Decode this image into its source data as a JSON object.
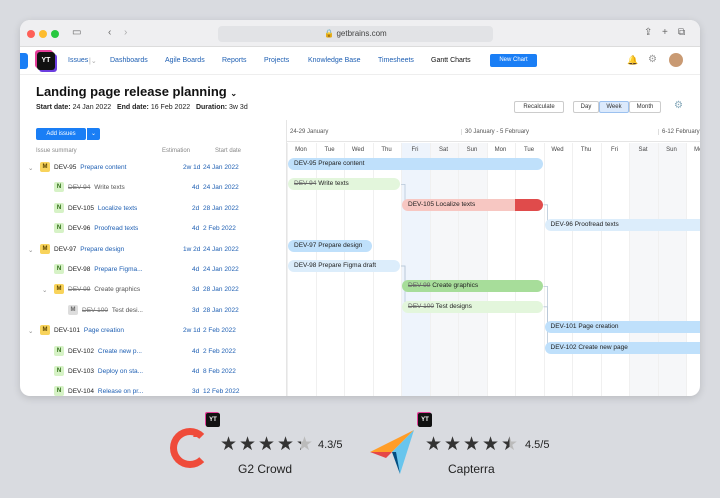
{
  "browser": {
    "url": "getbrains.com"
  },
  "nav": {
    "items": [
      "Issues",
      "Dashboards",
      "Agile Boards",
      "Reports",
      "Projects",
      "Knowledge Base",
      "Timesheets",
      "Gantt Charts"
    ],
    "new_chart": "New Chart",
    "logo_text": "YT"
  },
  "page": {
    "title": "Landing page release planning",
    "start_label": "Start date:",
    "start": "24 Jan 2022",
    "end_label": "End date:",
    "end": "16 Feb 2022",
    "duration_label": "Duration:",
    "duration": "3w 3d",
    "recalculate": "Recalculate",
    "views": [
      "Day",
      "Week",
      "Month"
    ],
    "selected_view": "Week",
    "add_issues": "Add issues"
  },
  "columns": {
    "summary": "Issue summary",
    "estimation": "Estimation",
    "start": "Start date"
  },
  "issues": [
    {
      "badge": "M",
      "id": "DEV-95",
      "title": "Prepare content",
      "est": "2w 1d",
      "start": "24 Jan 2022",
      "done": false,
      "level": 0
    },
    {
      "badge": "N",
      "id": "DEV-94",
      "title": "Write texts",
      "est": "4d",
      "start": "24 Jan 2022",
      "done": true,
      "level": 1
    },
    {
      "badge": "N",
      "id": "DEV-105",
      "title": "Localize texts",
      "est": "2d",
      "start": "28 Jan 2022",
      "done": false,
      "level": 1
    },
    {
      "badge": "N",
      "id": "DEV-96",
      "title": "Proofread texts",
      "est": "4d",
      "start": "2 Feb 2022",
      "done": false,
      "level": 1
    },
    {
      "badge": "M",
      "id": "DEV-97",
      "title": "Prepare design",
      "est": "1w 2d",
      "start": "24 Jan 2022",
      "done": false,
      "level": 0
    },
    {
      "badge": "N",
      "id": "DEV-98",
      "title": "Prepare Figma...",
      "est": "4d",
      "start": "24 Jan 2022",
      "done": false,
      "level": 1
    },
    {
      "badge": "M",
      "id": "DEV-99",
      "title": "Create graphics",
      "est": "3d",
      "start": "28 Jan 2022",
      "done": true,
      "level": 1
    },
    {
      "badge": "M",
      "id": "DEV-100",
      "title": "Test desi...",
      "est": "3d",
      "start": "28 Jan 2022",
      "done": true,
      "level": 2
    },
    {
      "badge": "M",
      "id": "DEV-101",
      "title": "Page creation",
      "est": "2w 1d",
      "start": "2 Feb 2022",
      "done": false,
      "level": 0
    },
    {
      "badge": "N",
      "id": "DEV-102",
      "title": "Create new p...",
      "est": "4d",
      "start": "2 Feb 2022",
      "done": false,
      "level": 1
    },
    {
      "badge": "N",
      "id": "DEV-103",
      "title": "Deploy on sta...",
      "est": "4d",
      "start": "8 Feb 2022",
      "done": false,
      "level": 1
    },
    {
      "badge": "N",
      "id": "DEV-104",
      "title": "Release on pr...",
      "est": "3d",
      "start": "12 Feb 2022",
      "done": false,
      "level": 1
    }
  ],
  "timeline": {
    "weeks": [
      "24-29 January",
      "30 January - 5 February",
      "6-12 February"
    ],
    "days": [
      "Mon",
      "Tue",
      "Wed",
      "Thu",
      "Fri",
      "Sat",
      "Sun",
      "Mon",
      "Tue",
      "Wed",
      "Thu",
      "Fri",
      "Sat",
      "Sun",
      "Mon"
    ],
    "today_index": 4
  },
  "bars": [
    {
      "id": "DEV-95",
      "title": "Prepare content",
      "start": 0,
      "days": 9,
      "color": "#bfe0fb",
      "done": false
    },
    {
      "id": "DEV-94",
      "title": "Write texts",
      "start": 0,
      "days": 4,
      "color": "#e3f6dc",
      "done": true
    },
    {
      "id": "DEV-105",
      "title": "Localize texts",
      "start": 4,
      "days": 5,
      "color": "#f7c7c2",
      "done": false,
      "overdue_from": 8
    },
    {
      "id": "DEV-96",
      "title": "Proofread texts",
      "start": 9,
      "days": 6,
      "color": "#dcedfb",
      "done": false
    },
    {
      "id": "DEV-97",
      "title": "Prepare design",
      "start": 0,
      "days": 3,
      "color": "#bfe0fb",
      "done": false
    },
    {
      "id": "DEV-98",
      "title": "Prepare Figma draft",
      "start": 0,
      "days": 4,
      "color": "#dcedfb",
      "done": false
    },
    {
      "id": "DEV-99",
      "title": "Create graphics",
      "start": 4,
      "days": 5,
      "color": "#a7dd9a",
      "done": true
    },
    {
      "id": "DEV-100",
      "title": "Test designs",
      "start": 4,
      "days": 5,
      "color": "#e3f6dc",
      "done": true
    },
    {
      "id": "DEV-101",
      "title": "Page creation",
      "start": 9,
      "days": 6,
      "color": "#bfe0fb",
      "done": false
    },
    {
      "id": "DEV-102",
      "title": "Create new page",
      "start": 9,
      "days": 6,
      "color": "#bfe0fb",
      "done": false
    }
  ],
  "ratings": [
    {
      "name": "G2 Crowd",
      "score": "4.3/5",
      "value": 4.3
    },
    {
      "name": "Capterra",
      "score": "4.5/5",
      "value": 4.5
    }
  ],
  "colors": {
    "accent": "#1a7ef5",
    "link": "#1e5fb3",
    "done_bar": "#a7dd9a",
    "overdue": "#e04b4b"
  }
}
